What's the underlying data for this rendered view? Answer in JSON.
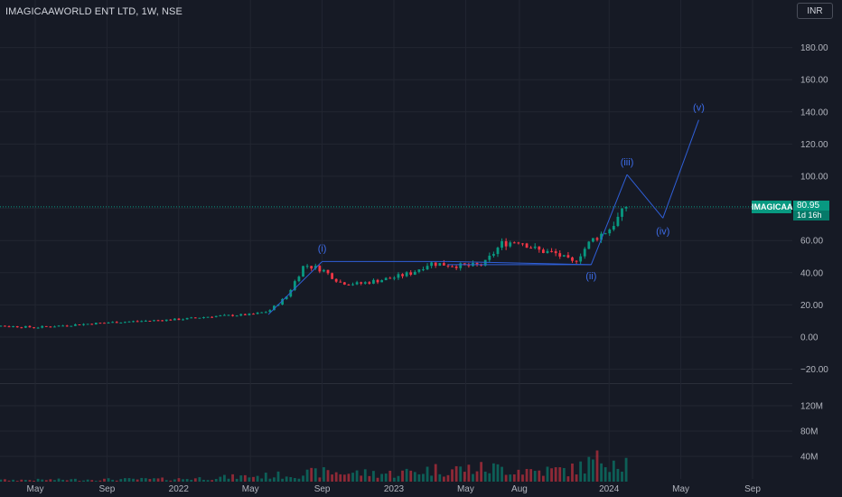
{
  "header": {
    "symbol_title": "IMAGICAAWORLD ENT LTD, 1W, NSE",
    "currency": "INR"
  },
  "price_tag": {
    "symbol": "IMAGICAA",
    "price": "80.95",
    "countdown": "1d 16h"
  },
  "colors": {
    "background": "#161a25",
    "up": "#089981",
    "down": "#f23645",
    "wave": "#2f5fd8",
    "grid": "#222631",
    "axis_text": "#b2b5be"
  },
  "chart_data": {
    "type": "candlestick",
    "y_axis": {
      "ticks": [
        -20,
        0,
        20,
        40,
        60,
        80,
        100,
        120,
        140,
        160,
        180
      ],
      "tick_labels": [
        "−20.00",
        "0.00",
        "20.00",
        "40.00",
        "60.00",
        "80.00",
        "100.00",
        "120.00",
        "140.00",
        "160.00",
        "180.00"
      ]
    },
    "volume_axis": {
      "ticks": [
        40,
        80,
        120
      ],
      "tick_labels": [
        "40M",
        "80M",
        "120M"
      ],
      "unit": "M"
    },
    "x_axis": {
      "labels": [
        {
          "text": "May",
          "date": "2021-05"
        },
        {
          "text": "Sep",
          "date": "2021-09"
        },
        {
          "text": "2022",
          "date": "2022-01"
        },
        {
          "text": "May",
          "date": "2022-05"
        },
        {
          "text": "Sep",
          "date": "2022-09"
        },
        {
          "text": "2023",
          "date": "2023-01"
        },
        {
          "text": "May",
          "date": "2023-05"
        },
        {
          "text": "Aug",
          "date": "2023-08"
        },
        {
          "text": "2024",
          "date": "2024-01"
        },
        {
          "text": "May",
          "date": "2024-05"
        },
        {
          "text": "Sep",
          "date": "2024-09"
        }
      ]
    },
    "last_price": 80.95,
    "price_anchors": [
      {
        "date": "2021-01",
        "price": 8
      },
      {
        "date": "2021-05",
        "price": 6
      },
      {
        "date": "2021-09",
        "price": 9
      },
      {
        "date": "2022-01",
        "price": 11
      },
      {
        "date": "2022-03",
        "price": 13
      },
      {
        "date": "2022-05",
        "price": 14
      },
      {
        "date": "2022-06",
        "price": 16
      },
      {
        "date": "2022-07",
        "price": 25
      },
      {
        "date": "2022-08",
        "price": 45
      },
      {
        "date": "2022-09",
        "price": 42
      },
      {
        "date": "2022-10",
        "price": 34
      },
      {
        "date": "2022-11",
        "price": 33
      },
      {
        "date": "2022-12",
        "price": 35
      },
      {
        "date": "2023-01",
        "price": 37
      },
      {
        "date": "2023-02",
        "price": 40
      },
      {
        "date": "2023-03",
        "price": 46
      },
      {
        "date": "2023-04",
        "price": 45
      },
      {
        "date": "2023-05",
        "price": 44
      },
      {
        "date": "2023-06",
        "price": 45
      },
      {
        "date": "2023-07",
        "price": 58
      },
      {
        "date": "2023-08",
        "price": 60
      },
      {
        "date": "2023-09",
        "price": 54
      },
      {
        "date": "2023-10",
        "price": 52
      },
      {
        "date": "2023-11",
        "price": 46
      },
      {
        "date": "2023-12",
        "price": 60
      },
      {
        "date": "2024-01",
        "price": 67
      },
      {
        "date": "2024-02",
        "price": 80.95
      }
    ],
    "volume_anchors": [
      {
        "date": "2021-01",
        "value": 2
      },
      {
        "date": "2022-01",
        "value": 4
      },
      {
        "date": "2022-07",
        "value": 10
      },
      {
        "date": "2022-09",
        "value": 14
      },
      {
        "date": "2023-01",
        "value": 12
      },
      {
        "date": "2023-03",
        "value": 18
      },
      {
        "date": "2023-07",
        "value": 20
      },
      {
        "date": "2023-09",
        "value": 16
      },
      {
        "date": "2023-11",
        "value": 18
      },
      {
        "date": "2024-01",
        "value": 38
      },
      {
        "date": "2024-02",
        "value": 30
      }
    ],
    "elliott_wave": {
      "points": [
        {
          "date": "2022-06",
          "price": 14
        },
        {
          "date": "2022-09",
          "price": 47,
          "label": "(i)"
        },
        {
          "date": "2023-04",
          "price": 47
        },
        {
          "date": "2023-12",
          "price": 45,
          "label": "(ii)"
        },
        {
          "date": "2023-08",
          "price": 46
        },
        {
          "date": "2024-02",
          "price": 101,
          "label": "(iii)"
        },
        {
          "date": "2024-04",
          "price": 74,
          "label": "(iv)"
        },
        {
          "date": "2024-06",
          "price": 135,
          "label": "(v)"
        }
      ],
      "path_order": [
        0,
        1,
        2,
        3
      ],
      "box": {
        "from": "2023-04",
        "to": "2023-12",
        "top": 47,
        "bottom": 45
      }
    }
  }
}
